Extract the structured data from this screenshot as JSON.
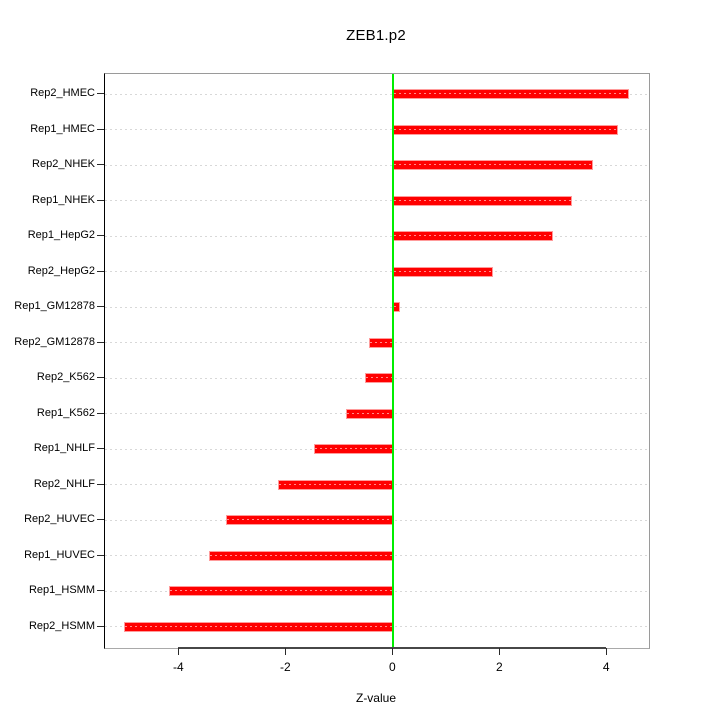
{
  "title": "ZEB1.p2",
  "chart_data": {
    "type": "bar",
    "orientation": "horizontal",
    "title": "ZEB1.p2",
    "xlabel": "Z-value",
    "categories": [
      "Rep2_HMEC",
      "Rep1_HMEC",
      "Rep2_NHEK",
      "Rep1_NHEK",
      "Rep1_HepG2",
      "Rep2_HepG2",
      "Rep1_GM12878",
      "Rep2_GM12878",
      "Rep2_K562",
      "Rep1_K562",
      "Rep1_NHLF",
      "Rep2_NHLF",
      "Rep2_HUVEC",
      "Rep1_HUVEC",
      "Rep1_HSMM",
      "Rep2_HSMM"
    ],
    "values": [
      4.4,
      4.2,
      3.73,
      3.34,
      2.98,
      1.86,
      0.12,
      -0.46,
      -0.53,
      -0.89,
      -1.49,
      -2.16,
      -3.13,
      -3.45,
      -4.2,
      -5.04
    ],
    "xlim": [
      -5.39,
      4.78
    ],
    "xticks": [
      -4,
      -2,
      0,
      2,
      4
    ],
    "grid": "dotted horizontal line per category, full plot width",
    "zero_line_at": 0,
    "legend": null,
    "colors": {
      "bar_fill": "#ff0000",
      "bar_border": "#ff9b9b",
      "zero_line": "#00ee00",
      "gridline": "#d8d8d8",
      "box": "#9a9a9a",
      "text": "#000000"
    }
  }
}
